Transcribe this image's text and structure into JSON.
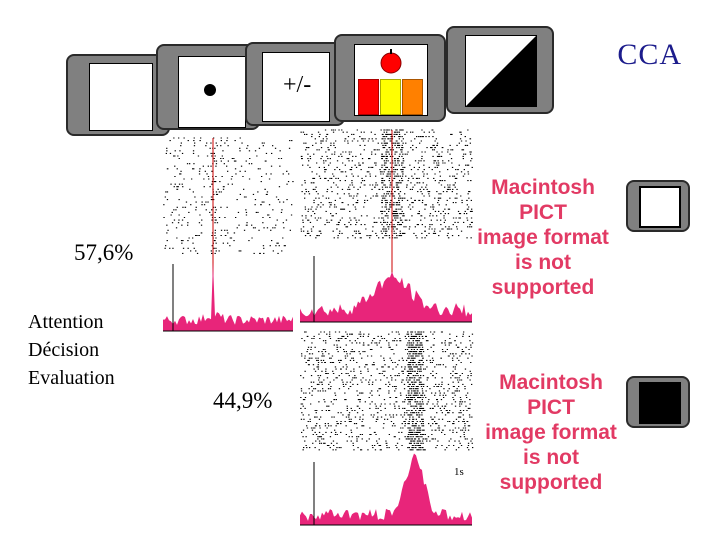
{
  "header": {
    "title": "CCA",
    "plus_minus_label": "+/-"
  },
  "stimuli": [
    {
      "name": "blank-square",
      "color": "#ffffff"
    },
    {
      "name": "dot-square",
      "color": "#000000"
    },
    {
      "name": "plus-minus-square",
      "color": "#ffffff"
    },
    {
      "name": "apple-color-bars",
      "colors": [
        "#ff0000",
        "#ffff00",
        "#ff8000"
      ]
    },
    {
      "name": "diagonal-black-white",
      "color": "#000000"
    }
  ],
  "stats": {
    "top_percentage": "57,6%",
    "bottom_percentage": "44,9%"
  },
  "conditions": [
    "Attention",
    "Décision",
    "Evaluation"
  ],
  "placeholders": {
    "pict_top": [
      "Macintosh PICT",
      "image format",
      "is not supported"
    ],
    "pict_bottom": [
      "Macintosh PICT",
      "image format",
      "is not supported"
    ]
  },
  "scale_label": "1s",
  "colors": {
    "histogram": "#e8257a",
    "title": "#1c1c8c",
    "event_line": "#cc0000",
    "tile": "#808080"
  }
}
